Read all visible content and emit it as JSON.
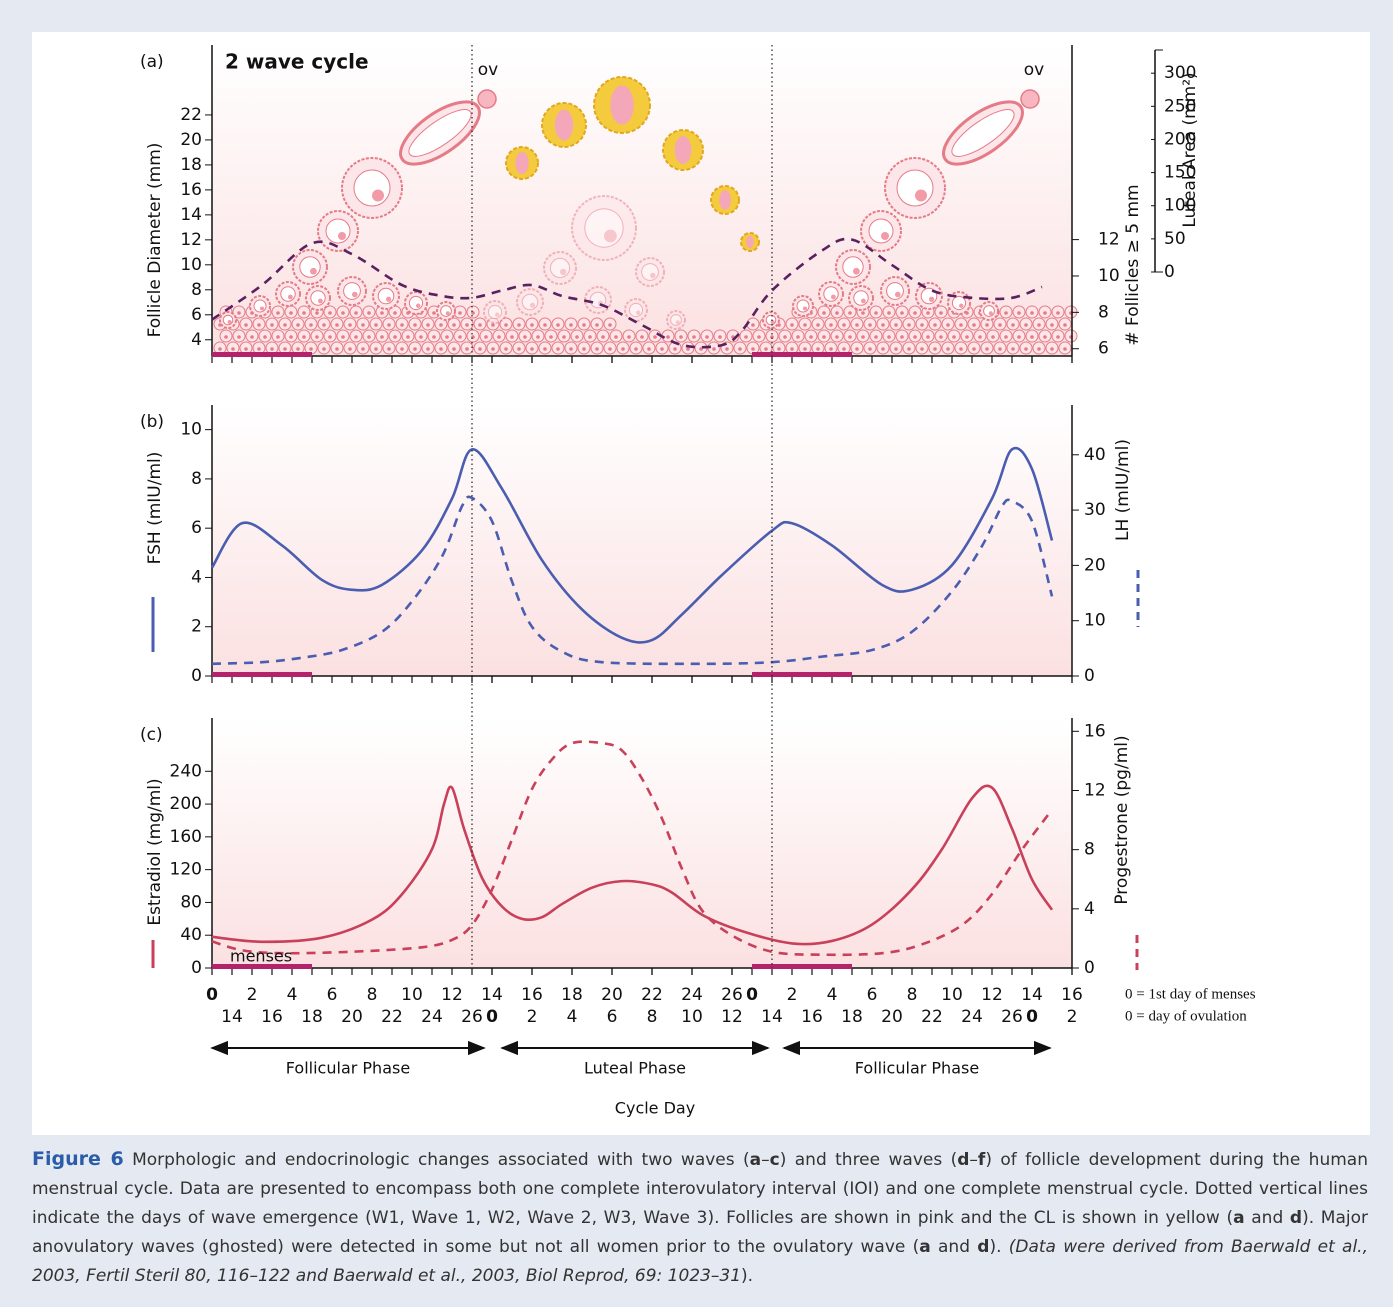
{
  "chart_data": [
    {
      "type": "line",
      "panel_label": "(a)",
      "title": "2 wave cycle",
      "ylabel": "Follicle Diameter (mm)",
      "y2label": "# Follicles ≥ 5 mm",
      "y3label": "Luteal Area (mm²)",
      "xlim": [
        0,
        43
      ],
      "ylim": [
        2.7,
        27.6
      ],
      "yticks": [
        4,
        6,
        8,
        10,
        12,
        14,
        16,
        18,
        20,
        22
      ],
      "y2lim": [
        5.6,
        22.7
      ],
      "y2ticks": [
        6,
        8,
        10,
        12
      ],
      "y3lim": [
        0,
        335
      ],
      "y3ticks": [
        0,
        50,
        100,
        150,
        200,
        250,
        300
      ],
      "vlines": [
        13,
        28
      ],
      "annotations": [
        {
          "text": "ov",
          "x": 13.8
        },
        {
          "text": "ov",
          "x": 41.1
        }
      ],
      "series": [
        {
          "color": "#5a2160",
          "dash": true,
          "axis": "y2",
          "x": [
            0,
            2.5,
            5,
            7,
            9.5,
            11.5,
            13,
            14.5,
            16,
            17.5,
            19.5,
            21.5,
            23.5,
            25.5,
            26.5,
            28,
            30.5,
            32,
            34,
            36,
            38,
            40,
            41.5
          ],
          "values": [
            7.6,
            9.5,
            11.8,
            11.2,
            9.5,
            8.9,
            8.8,
            9.2,
            9.5,
            8.9,
            8.4,
            7.3,
            6.2,
            6.2,
            7.0,
            9.2,
            11.4,
            12.0,
            10.6,
            9.2,
            8.8,
            8.8,
            9.4
          ]
        }
      ]
    },
    {
      "type": "line",
      "panel_label": "(b)",
      "ylabel": "FSH (mIU/ml)",
      "y2label": "LH (mIU/ml)",
      "xlim": [
        0,
        43
      ],
      "ylim": [
        0,
        11
      ],
      "yticks": [
        0,
        2,
        4,
        6,
        8,
        10
      ],
      "y2lim": [
        0,
        49
      ],
      "y2ticks": [
        0,
        10,
        20,
        30,
        40
      ],
      "series": [
        {
          "color": "#4a5db0",
          "dash": false,
          "axis": "y",
          "x": [
            0,
            1.5,
            3.5,
            5.5,
            7,
            8.5,
            10.5,
            12,
            13,
            14.5,
            16.5,
            18.5,
            20.5,
            22,
            23.5,
            25.5,
            28,
            29,
            31,
            33.5,
            35,
            37,
            39,
            40,
            41,
            42
          ],
          "values": [
            4.4,
            6.2,
            5.3,
            3.9,
            3.5,
            3.7,
            5.1,
            7.2,
            9.2,
            7.6,
            4.7,
            2.7,
            1.55,
            1.46,
            2.5,
            4.1,
            5.9,
            6.2,
            5.3,
            3.7,
            3.5,
            4.5,
            7.2,
            9.2,
            8.4,
            5.5
          ]
        },
        {
          "color": "#4a5db0",
          "dash": true,
          "axis": "y2",
          "x": [
            0,
            2.5,
            4.5,
            6.5,
            8.5,
            10,
            11.5,
            12.5,
            13,
            14,
            15,
            16,
            17.5,
            19.5,
            24.5,
            28,
            30.5,
            33,
            35,
            37,
            38.5,
            39.5,
            40,
            41,
            42
          ],
          "values": [
            2.2,
            2.5,
            3.3,
            4.7,
            8,
            13.5,
            21.6,
            30.7,
            32.2,
            28,
            17.1,
            8.9,
            4.4,
            2.5,
            2.2,
            2.5,
            3.5,
            4.7,
            8,
            15.3,
            23.5,
            30.7,
            31.6,
            28,
            14.4
          ]
        }
      ]
    },
    {
      "type": "line",
      "panel_label": "(c)",
      "ylabel": "Estradiol (mg/ml)",
      "y2label": "Progestrone (pg/ml)",
      "xlabel": "Cycle Day",
      "xlim": [
        0,
        43
      ],
      "ylim": [
        0,
        305
      ],
      "yticks": [
        0,
        40,
        80,
        120,
        160,
        200,
        240
      ],
      "y2lim": [
        0,
        16.9
      ],
      "y2ticks": [
        0,
        4,
        8,
        12,
        16
      ],
      "xticks": [
        0,
        2,
        4,
        6,
        8,
        10,
        12,
        14,
        16,
        18,
        20,
        22,
        24,
        26,
        {
          "value": 27,
          "label": "0"
        },
        {
          "value": 29,
          "label": "2"
        },
        {
          "value": 31,
          "label": "4"
        },
        {
          "value": 33,
          "label": "6"
        },
        {
          "value": 35,
          "label": "8"
        },
        {
          "value": 37,
          "label": "10"
        },
        {
          "value": 39,
          "label": "12"
        },
        {
          "value": 41,
          "label": "14"
        },
        {
          "value": 43,
          "label": "16"
        }
      ],
      "xticks2": [
        {
          "value": 1,
          "label": "14"
        },
        {
          "value": 3,
          "label": "16"
        },
        {
          "value": 5,
          "label": "18"
        },
        {
          "value": 7,
          "label": "20"
        },
        {
          "value": 9,
          "label": "22"
        },
        {
          "value": 11,
          "label": "24"
        },
        {
          "value": 13,
          "label": "26"
        },
        {
          "value": 14,
          "label": "0"
        },
        {
          "value": 16,
          "label": "2"
        },
        {
          "value": 18,
          "label": "4"
        },
        {
          "value": 20,
          "label": "6"
        },
        {
          "value": 22,
          "label": "8"
        },
        {
          "value": 24,
          "label": "10"
        },
        {
          "value": 26,
          "label": "12"
        },
        {
          "value": 28,
          "label": "14"
        },
        {
          "value": 30,
          "label": "16"
        },
        {
          "value": 32,
          "label": "18"
        },
        {
          "value": 34,
          "label": "20"
        },
        {
          "value": 36,
          "label": "22"
        },
        {
          "value": 38,
          "label": "24"
        },
        {
          "value": 40,
          "label": "26"
        },
        {
          "value": 41,
          "label": "0"
        },
        {
          "value": 43,
          "label": "2"
        }
      ],
      "menses": {
        "label": "menses",
        "spans": [
          [
            0,
            5
          ],
          [
            27,
            32
          ]
        ]
      },
      "phases": [
        {
          "label": "Follicular Phase",
          "from": 0,
          "to": 13.6
        },
        {
          "label": "Luteal Phase",
          "from": 14.5,
          "to": 27.8
        },
        {
          "label": "Follicular Phase",
          "from": 28.6,
          "to": 41.9
        }
      ],
      "notes": [
        "0 = 1st day of menses",
        "0 = day of ovulation"
      ],
      "series": [
        {
          "color": "#c8405a",
          "dash": false,
          "axis": "y",
          "x": [
            0,
            2.5,
            5.5,
            8,
            9.5,
            11,
            11.6,
            12,
            12.6,
            13.5,
            14.5,
            15.5,
            16.5,
            17.5,
            19,
            20.5,
            22,
            23,
            24.5,
            26.5,
            29,
            31,
            33,
            35,
            36.5,
            38,
            39,
            40,
            41,
            42
          ],
          "values": [
            38,
            32,
            37,
            59,
            90,
            145,
            200,
            220,
            170,
            110,
            75,
            60,
            62,
            78,
            98,
            106,
            102,
            92,
            65,
            45,
            30,
            33,
            53,
            96,
            145,
            207,
            220,
            170,
            108,
            71
          ]
        },
        {
          "color": "#c8405a",
          "dash": true,
          "axis": "y2",
          "x": [
            0,
            1.5,
            3.5,
            7,
            10.5,
            12,
            13,
            14,
            15,
            16,
            17,
            18,
            19.5,
            20.5,
            21.5,
            22.5,
            23.5,
            24.5,
            26,
            28,
            30.5,
            33.5,
            35.5,
            37.5,
            39,
            40.5,
            42
          ],
          "values": [
            1.8,
            1.2,
            1.0,
            1.1,
            1.4,
            1.9,
            2.9,
            5.3,
            8.7,
            12.1,
            14.1,
            15.2,
            15.2,
            14.7,
            12.8,
            10.1,
            6.7,
            3.9,
            2.2,
            1.1,
            0.9,
            1.0,
            1.6,
            2.9,
            5.0,
            8.0,
            10.7
          ]
        }
      ]
    }
  ],
  "caption": {
    "label": "Figure 6",
    "runs": [
      {
        "text": " Morphologic and endocrinologic changes associated with two waves ("
      },
      {
        "text": "a",
        "bold": true
      },
      {
        "text": "–"
      },
      {
        "text": "c",
        "bold": true
      },
      {
        "text": ") and three waves ("
      },
      {
        "text": "d",
        "bold": true
      },
      {
        "text": "–"
      },
      {
        "text": "f",
        "bold": true
      },
      {
        "text": ") of follicle development during the human menstrual cycle. Data are presented to encompass both one complete interovulatory interval (IOI) and one complete menstrual cycle. Dotted vertical lines indicate the days of wave emergence (W1, Wave 1, W2, Wave 2, W3, Wave 3). Follicles are shown in pink and the CL is shown in yellow ("
      },
      {
        "text": "a",
        "bold": true
      },
      {
        "text": " and "
      },
      {
        "text": "d",
        "bold": true
      },
      {
        "text": "). Major anovulatory waves (ghosted) were detected in some but not all women prior to the ovulatory wave ("
      },
      {
        "text": "a",
        "bold": true
      },
      {
        "text": " and "
      },
      {
        "text": "d",
        "bold": true
      },
      {
        "text": "). "
      },
      {
        "text": "(Data were derived from Baerwald et al., 2003, Fertil Steril 80, 116–122 and Baerwald et al., 2003, Biol Reprod, 69: 1023–31",
        "italic": true
      },
      {
        "text": ")."
      }
    ]
  }
}
